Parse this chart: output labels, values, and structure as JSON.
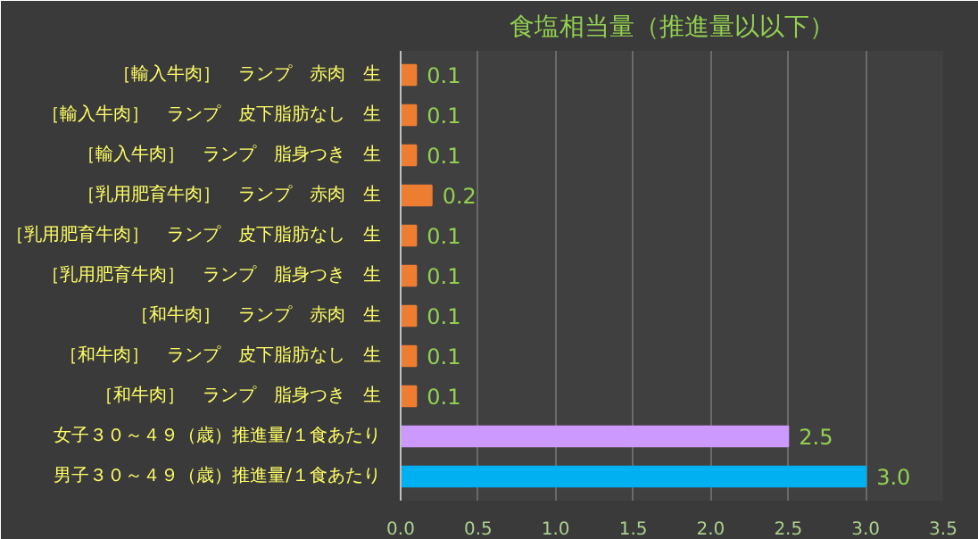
{
  "chart_data": {
    "type": "bar",
    "orientation": "horizontal",
    "title": "食塩相当量（推進量以以下）",
    "categories": [
      "［輸入牛肉］　ランプ　赤肉　生",
      "［輸入牛肉］　ランプ　皮下脂肪なし　生",
      "［輸入牛肉］　ランプ　脂身つき　生",
      "［乳用肥育牛肉］　ランプ　赤肉　生",
      "［乳用肥育牛肉］　ランプ　皮下脂肪なし　生",
      "［乳用肥育牛肉］　ランプ　脂身つき　生",
      "［和牛肉］　ランプ　赤肉　生",
      "［和牛肉］　ランプ　皮下脂肪なし　生",
      "［和牛肉］　ランプ　脂身つき　生",
      "女子３０～４９（歳）推進量/１食あたり",
      "男子３０～４９（歳）推進量/１食あたり"
    ],
    "values": [
      0.1,
      0.1,
      0.1,
      0.2,
      0.1,
      0.1,
      0.1,
      0.1,
      0.1,
      2.5,
      3.0
    ],
    "value_labels": [
      "0.1",
      "0.1",
      "0.1",
      "0.2",
      "0.1",
      "0.1",
      "0.1",
      "0.1",
      "0.1",
      "2.5",
      "3.0"
    ],
    "colors": [
      "#ed7d31",
      "#ed7d31",
      "#ed7d31",
      "#ed7d31",
      "#ed7d31",
      "#ed7d31",
      "#ed7d31",
      "#ed7d31",
      "#ed7d31",
      "#cc99ff",
      "#00b0f0"
    ],
    "xlim": [
      0,
      3.5
    ],
    "xticks": [
      {
        "value": 0,
        "label": "0.0"
      },
      {
        "value": 0.5,
        "label": "0.5"
      },
      {
        "value": 1,
        "label": "1.0"
      },
      {
        "value": 1.5,
        "label": "1.5"
      },
      {
        "value": 2,
        "label": "2.0"
      },
      {
        "value": 2.5,
        "label": "2.5"
      },
      {
        "value": 3,
        "label": "3.0"
      },
      {
        "value": 3.5,
        "label": "3.5"
      }
    ],
    "grid": "x"
  }
}
